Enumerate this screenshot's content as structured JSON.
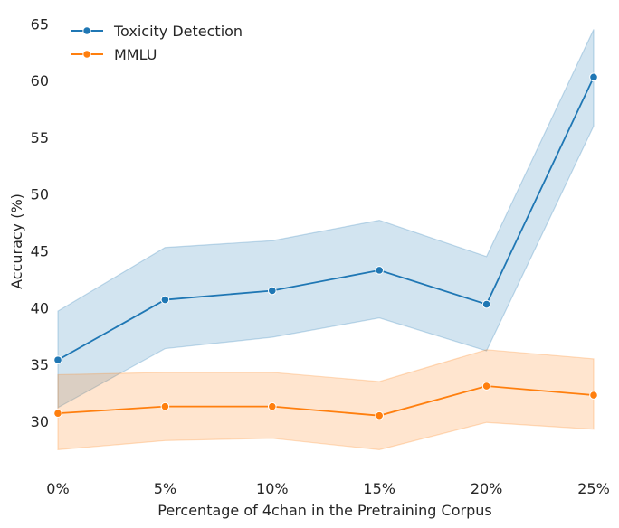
{
  "chart_data": {
    "type": "line",
    "title": "",
    "xlabel": "Percentage of 4chan in the Pretraining Corpus",
    "ylabel": "Accuracy (%)",
    "categories": [
      "0%",
      "5%",
      "10%",
      "15%",
      "20%",
      "25%"
    ],
    "ylim": [
      25.3,
      65.5
    ],
    "yticks": [
      30,
      35,
      40,
      45,
      50,
      55,
      60,
      65
    ],
    "grid": false,
    "legend_position": "top-left",
    "series": [
      {
        "name": "Toxicity Detection",
        "color": "#1f77b4",
        "values": [
          35.4,
          40.7,
          41.5,
          43.3,
          40.3,
          60.3
        ],
        "ci_lower": [
          31.2,
          36.4,
          37.4,
          39.1,
          36.2,
          56.0
        ],
        "ci_upper": [
          39.7,
          45.3,
          45.9,
          47.7,
          44.5,
          64.5
        ]
      },
      {
        "name": "MMLU",
        "color": "#ff7f0e",
        "values": [
          30.7,
          31.3,
          31.3,
          30.5,
          33.1,
          32.3
        ],
        "ci_lower": [
          27.5,
          28.3,
          28.5,
          27.5,
          29.9,
          29.3
        ],
        "ci_upper": [
          34.1,
          34.3,
          34.3,
          33.5,
          36.3,
          35.5
        ]
      }
    ]
  }
}
